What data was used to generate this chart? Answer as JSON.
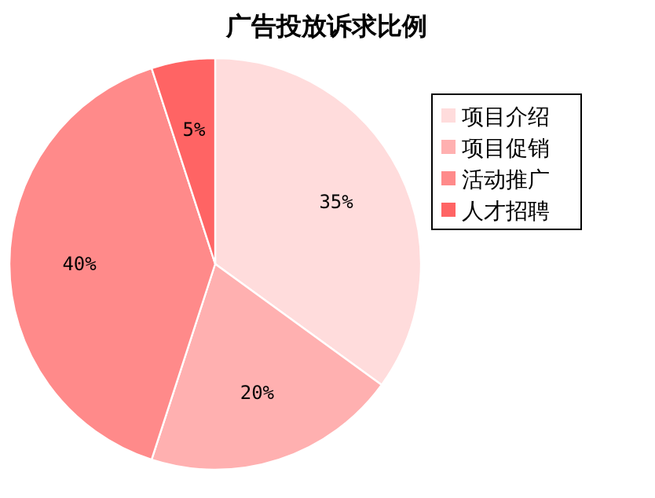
{
  "chart_data": {
    "type": "pie",
    "title": "广告投放诉求比例",
    "categories": [
      "项目介绍",
      "项目促销",
      "活动推广",
      "人才招聘"
    ],
    "values": [
      35,
      20,
      40,
      5
    ],
    "colors": [
      "#ffdcdc",
      "#ffb0b0",
      "#ff8a8a",
      "#ff6464"
    ],
    "value_labels": [
      "35%",
      "20%",
      "40%",
      "5%"
    ],
    "legend": "top right"
  }
}
